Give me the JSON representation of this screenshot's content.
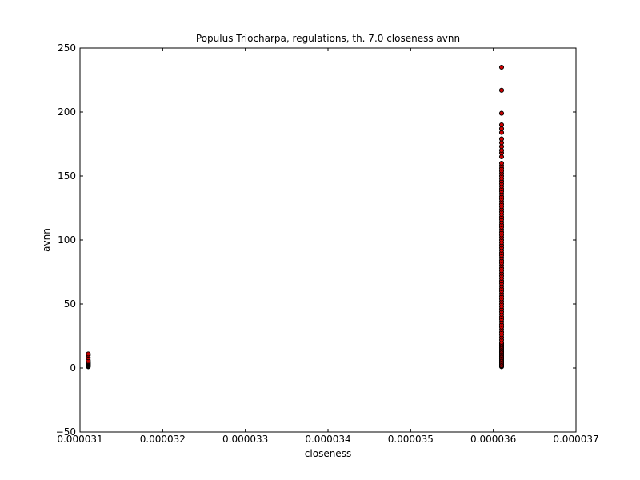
{
  "chart_data": {
    "type": "scatter",
    "title": "Populus Triocharpa, regulations, th. 7.0 closeness avnn",
    "xlabel": "closeness",
    "ylabel": "avnn",
    "xlim": [
      3.1e-05,
      3.7e-05
    ],
    "ylim": [
      -50,
      250
    ],
    "xticks": [
      3.1e-05,
      3.2e-05,
      3.3e-05,
      3.4e-05,
      3.5e-05,
      3.6e-05,
      3.7e-05
    ],
    "xtick_labels": [
      "0.000031",
      "0.000032",
      "0.000033",
      "0.000034",
      "0.000035",
      "0.000036",
      "0.000037"
    ],
    "yticks": [
      -50,
      0,
      50,
      100,
      150,
      200,
      250
    ],
    "ytick_labels": [
      "−50",
      "0",
      "50",
      "100",
      "150",
      "200",
      "250"
    ],
    "grid": false,
    "marker_color": "#cc0000",
    "marker_edge_color": "#000000",
    "series": [
      {
        "x_value": 3.11e-05,
        "values": [
          1,
          1.5,
          2,
          2.5,
          3,
          3.5,
          4,
          4.5,
          5,
          6,
          8,
          10,
          11
        ]
      },
      {
        "x_value": 3.61e-05,
        "values": [
          1,
          1.5,
          2,
          3,
          4,
          5,
          6,
          7,
          8,
          9,
          10,
          11,
          12,
          13,
          14,
          15,
          16,
          17,
          18,
          19,
          20,
          22,
          24,
          26,
          28,
          30,
          32,
          34,
          36,
          38,
          40,
          42,
          44,
          46,
          48,
          50,
          52,
          54,
          56,
          58,
          60,
          62,
          64,
          66,
          68,
          70,
          72,
          74,
          76,
          78,
          80,
          82,
          84,
          86,
          88,
          90,
          92,
          94,
          96,
          98,
          100,
          102,
          104,
          106,
          108,
          110,
          112,
          114,
          116,
          118,
          120,
          122,
          124,
          126,
          128,
          130,
          132,
          134,
          136,
          138,
          140,
          142,
          144,
          146,
          148,
          150,
          152,
          154,
          156,
          158,
          160,
          165,
          168,
          170,
          173,
          176,
          179,
          184,
          187,
          190,
          199,
          217,
          235
        ]
      }
    ]
  }
}
